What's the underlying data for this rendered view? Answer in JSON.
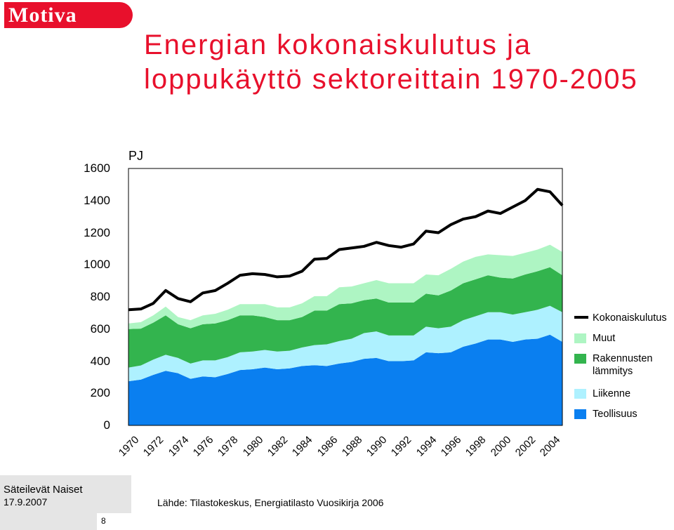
{
  "header": {
    "logo_text": "Motiva",
    "title": "Energian kokonaiskulutus ja loppukäyttö sektoreittain 1970-2005"
  },
  "chart_data": {
    "type": "area",
    "title": "Energian kokonaiskulutus ja loppukäyttö sektoreittain 1970-2005",
    "ylabel": "PJ",
    "ylim": [
      0,
      1600
    ],
    "yticks": [
      "1600",
      "1400",
      "1200",
      "1000",
      "800",
      "600",
      "400",
      "200",
      "0"
    ],
    "xticks": [
      "1970",
      "1972",
      "1974",
      "1976",
      "1978",
      "1980",
      "1982",
      "1984",
      "1986",
      "1988",
      "1990",
      "1992",
      "1994",
      "1996",
      "1998",
      "2000",
      "2002",
      "2004"
    ],
    "x": [
      1970,
      1971,
      1972,
      1973,
      1974,
      1975,
      1976,
      1977,
      1978,
      1979,
      1980,
      1981,
      1982,
      1983,
      1984,
      1985,
      1986,
      1987,
      1988,
      1989,
      1990,
      1991,
      1992,
      1993,
      1994,
      1995,
      1996,
      1997,
      1998,
      1999,
      2000,
      2001,
      2002,
      2003,
      2004,
      2005
    ],
    "stacked": true,
    "legend_position": "right",
    "series": [
      {
        "name": "Teollisuus",
        "color": "#0a7ff0",
        "values": [
          275,
          285,
          315,
          340,
          325,
          290,
          305,
          300,
          320,
          345,
          350,
          360,
          350,
          355,
          370,
          375,
          370,
          385,
          395,
          415,
          420,
          400,
          400,
          405,
          455,
          450,
          455,
          490,
          510,
          535,
          535,
          520,
          535,
          540,
          565,
          520
        ]
      },
      {
        "name": "Liikenne",
        "color": "#aef1ff",
        "values": [
          85,
          88,
          95,
          100,
          95,
          95,
          100,
          105,
          105,
          110,
          110,
          110,
          110,
          110,
          115,
          125,
          135,
          140,
          145,
          160,
          165,
          160,
          160,
          155,
          160,
          155,
          160,
          165,
          170,
          170,
          170,
          170,
          170,
          180,
          180,
          185
        ]
      },
      {
        "name": "Rakennusten lämmitys",
        "color": "#33b44e",
        "values": [
          240,
          230,
          230,
          245,
          210,
          220,
          225,
          230,
          230,
          230,
          225,
          205,
          195,
          190,
          190,
          215,
          210,
          230,
          220,
          205,
          205,
          205,
          205,
          205,
          205,
          205,
          225,
          230,
          230,
          230,
          215,
          225,
          235,
          240,
          240,
          230
        ]
      },
      {
        "name": "Muut",
        "color": "#aef5c3",
        "values": [
          35,
          40,
          45,
          55,
          45,
          50,
          55,
          60,
          65,
          70,
          70,
          80,
          80,
          80,
          85,
          90,
          90,
          105,
          105,
          105,
          115,
          120,
          120,
          120,
          120,
          125,
          135,
          135,
          140,
          130,
          140,
          140,
          135,
          135,
          140,
          145
        ]
      },
      {
        "name": "Kokonaiskulutus",
        "type": "line",
        "color": "#000000",
        "values": [
          720,
          725,
          760,
          840,
          790,
          770,
          825,
          840,
          885,
          935,
          945,
          940,
          925,
          930,
          960,
          1035,
          1040,
          1095,
          1105,
          1115,
          1140,
          1120,
          1110,
          1130,
          1210,
          1200,
          1250,
          1285,
          1300,
          1335,
          1320,
          1360,
          1400,
          1470,
          1455,
          1370
        ]
      }
    ]
  },
  "footer": {
    "title": "Säteilevät Naiset",
    "date": "17.9.2007",
    "page": "8",
    "source": "Lähde: Tilastokeskus, Energiatilasto  Vuosikirja 2006"
  }
}
